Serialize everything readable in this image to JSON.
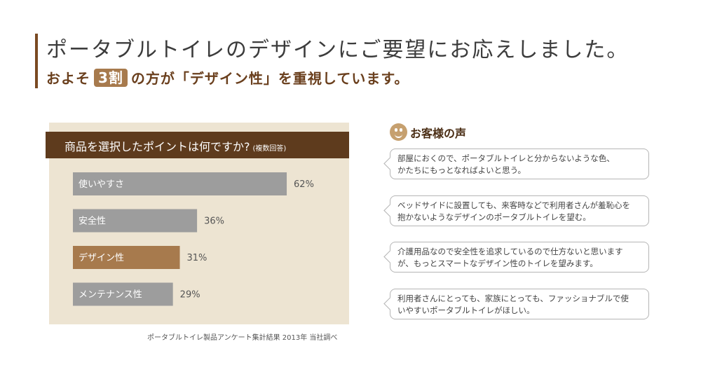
{
  "headline": "ポータブルトイレのデザインにご要望にお応えしました。",
  "subline": {
    "before": "およそ",
    "badge": "3割",
    "after": "の方が「デザイン性」を重視しています。"
  },
  "chart_data": {
    "type": "bar",
    "orientation": "horizontal",
    "title": "商品を選択したポイントは何ですか?",
    "title_note": "(複数回答)",
    "categories": [
      "使いやすさ",
      "安全性",
      "デザイン性",
      "メンテナンス性"
    ],
    "values": [
      62,
      36,
      31,
      29
    ],
    "value_labels": [
      "62%",
      "36%",
      "31%",
      "29%"
    ],
    "unit": "%",
    "xlim": [
      0,
      100
    ],
    "highlight_category": "デザイン性",
    "colors": {
      "default": "#9d9d9d",
      "highlight": "#a77a4d",
      "panel": "#ede4d2",
      "header": "#5e3b1d"
    },
    "grid": false
  },
  "source_note": "ポータブルトイレ製品アンケート集計結果 2013年 当社調べ",
  "voices": {
    "heading": "お客様の声",
    "icon": "smiley-face-icon",
    "items": [
      {
        "line1": "部屋におくので、ポータブルトイレと分からないような色、",
        "line2": "かたちにもっとなればよいと思う。"
      },
      {
        "line1": "ベッドサイドに設置しても、来客時などで利用者さんが羞恥心を",
        "line2": "抱かないようなデザインのポータブルトイレを望む。"
      },
      {
        "line1": "介護用品なので安全性を追求しているので仕方ないと思います",
        "line2": "が、もっとスマートなデザイン性のトイレを望みます。"
      },
      {
        "line1": "利用者さんにとっても、家族にとっても、ファッショナブルで使",
        "line2": "いやすいポータブルトイレがほしい。"
      }
    ]
  }
}
